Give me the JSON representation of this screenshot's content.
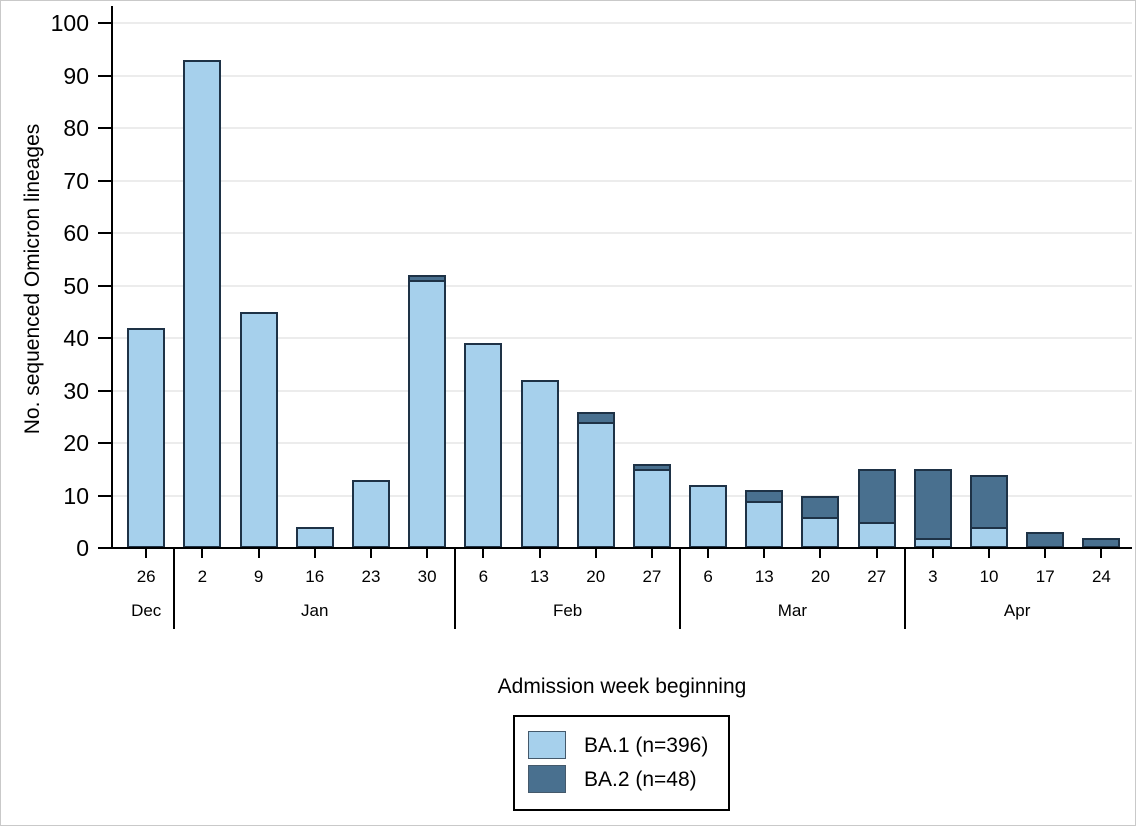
{
  "chart_data": {
    "type": "bar",
    "stacked": true,
    "xlabel": "Admission week beginning",
    "ylabel": "No. sequenced Omicron lineages",
    "ylim": [
      0,
      100
    ],
    "yticks": [
      0,
      10,
      20,
      30,
      40,
      50,
      60,
      70,
      80,
      90,
      100
    ],
    "grid": true,
    "legend_position": "below-plot-center",
    "categories": [
      "26",
      "2",
      "9",
      "16",
      "23",
      "30",
      "6",
      "13",
      "20",
      "27",
      "6",
      "13",
      "20",
      "27",
      "3",
      "10",
      "17",
      "24"
    ],
    "month_groups": [
      {
        "label": "Dec",
        "count": 1
      },
      {
        "label": "Jan",
        "count": 5
      },
      {
        "label": "Feb",
        "count": 4
      },
      {
        "label": "Mar",
        "count": 4
      },
      {
        "label": "Apr",
        "count": 4
      }
    ],
    "series": [
      {
        "name": "BA.1 (n=396)",
        "color": "#a6d0ec",
        "values": [
          42,
          93,
          45,
          4,
          13,
          51,
          39,
          32,
          24,
          15,
          12,
          9,
          6,
          5,
          2,
          4,
          0,
          0
        ]
      },
      {
        "name": "BA.2 (n=48)",
        "color": "#49708f",
        "values": [
          0,
          0,
          0,
          0,
          0,
          1,
          0,
          0,
          2,
          1,
          0,
          2,
          4,
          10,
          13,
          10,
          3,
          2
        ]
      }
    ],
    "bar_border_color": "#1e3246",
    "gridline_color": "#ececec"
  }
}
